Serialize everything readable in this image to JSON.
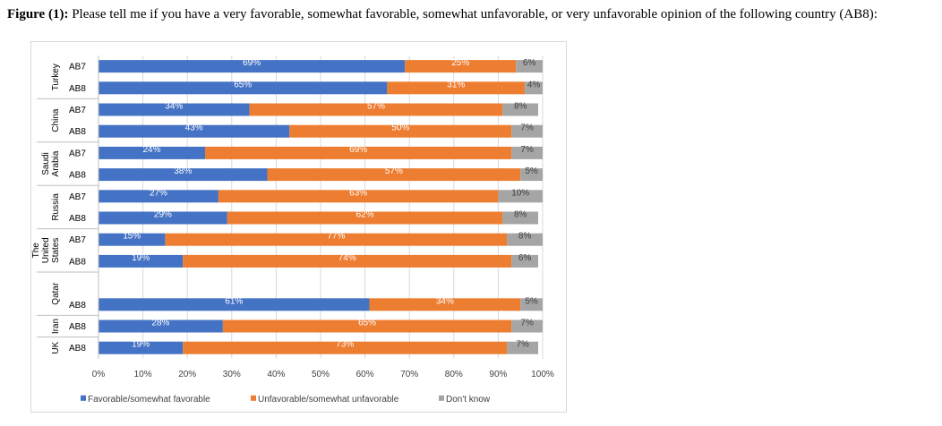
{
  "caption": {
    "label": "Figure (1):",
    "text": "Please tell me if you have a very favorable, somewhat favorable, somewhat unfavorable, or very unfavorable opinion of the following country (AB8):"
  },
  "chart_data": {
    "type": "bar",
    "orientation": "horizontal",
    "stacked": true,
    "xlim": [
      0,
      100
    ],
    "x_ticks": [
      "0%",
      "10%",
      "20%",
      "30%",
      "40%",
      "50%",
      "60%",
      "70%",
      "80%",
      "90%",
      "100%"
    ],
    "grid": true,
    "legend_position": "bottom",
    "colors": {
      "Favorable/somewhat favorable": "#4472c4",
      "Unfavorable/somewhat unfavorable": "#ed7d31",
      "Don't know": "#a5a5a5"
    },
    "series": [
      {
        "name": "Favorable/somewhat favorable"
      },
      {
        "name": "Unfavorable/somewhat unfavorable"
      },
      {
        "name": "Don't know"
      }
    ],
    "groups": [
      {
        "name": "Turkey",
        "rows": [
          {
            "label": "AB7",
            "values": [
              69,
              25,
              6
            ]
          },
          {
            "label": "AB8",
            "values": [
              65,
              31,
              4
            ]
          }
        ]
      },
      {
        "name": "China",
        "rows": [
          {
            "label": "AB7",
            "values": [
              34,
              57,
              8
            ]
          },
          {
            "label": "AB8",
            "values": [
              43,
              50,
              7
            ]
          }
        ]
      },
      {
        "name": "Saudi Arabia",
        "lines": [
          "Saudi",
          "Arabia"
        ],
        "rows": [
          {
            "label": "AB7",
            "values": [
              24,
              69,
              7
            ]
          },
          {
            "label": "AB8",
            "values": [
              38,
              57,
              5
            ]
          }
        ]
      },
      {
        "name": "Russia",
        "rows": [
          {
            "label": "AB7",
            "values": [
              27,
              63,
              10
            ]
          },
          {
            "label": "AB8",
            "values": [
              29,
              62,
              8
            ]
          }
        ]
      },
      {
        "name": "The United States",
        "lines": [
          "The",
          "United",
          "States"
        ],
        "rows": [
          {
            "label": "AB7",
            "values": [
              15,
              77,
              8
            ]
          },
          {
            "label": "AB8",
            "values": [
              19,
              74,
              6
            ]
          }
        ]
      },
      {
        "name": "Qatar",
        "rows": [
          {
            "label": "AB8",
            "values": [
              61,
              34,
              5
            ]
          }
        ]
      },
      {
        "name": "Iran",
        "rows": [
          {
            "label": "AB8",
            "values": [
              28,
              65,
              7
            ]
          }
        ]
      },
      {
        "name": "UK",
        "rows": [
          {
            "label": "AB8",
            "values": [
              19,
              73,
              7
            ]
          }
        ]
      }
    ]
  }
}
